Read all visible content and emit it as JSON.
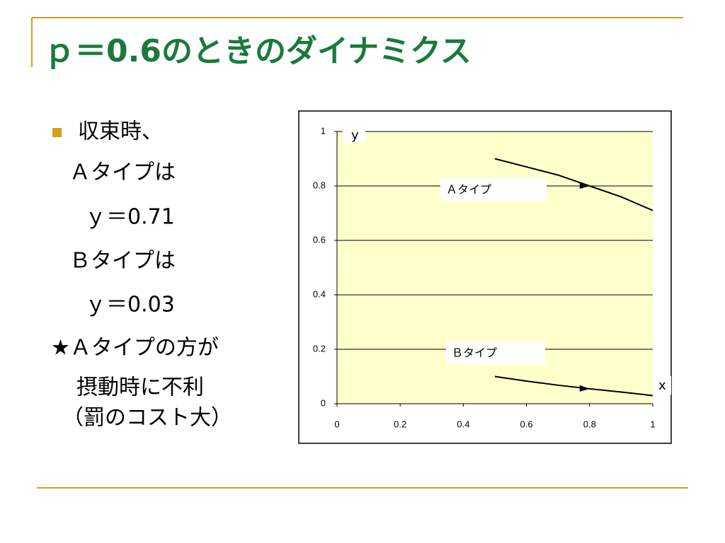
{
  "header": {
    "title": "ｐ＝0.6のときのダイナミクス"
  },
  "body": {
    "lines": [
      "収束時、",
      "Ａタイプは",
      "ｙ＝0.71",
      "Ｂタイプは",
      "ｙ＝0.03",
      "★Ａタイプの方が",
      "摂動時に不利",
      "（罰のコスト大）"
    ]
  },
  "chart_data": {
    "type": "line",
    "x": [
      0.5,
      0.6,
      0.7,
      0.8,
      0.9,
      1.0
    ],
    "series": [
      {
        "name": "Ａタイプ",
        "color": "#000000",
        "values": [
          0.9,
          0.87,
          0.84,
          0.8,
          0.76,
          0.71
        ]
      },
      {
        "name": "Ｂタイプ",
        "color": "#000000",
        "values": [
          0.1,
          0.083,
          0.068,
          0.055,
          0.043,
          0.03
        ]
      }
    ],
    "x_label": "x",
    "y_label": "y",
    "xlim": [
      0,
      1
    ],
    "ylim": [
      0,
      1
    ],
    "xticks": [
      0,
      0.2,
      0.4,
      0.6,
      0.8,
      1
    ],
    "yticks": [
      0,
      0.2,
      0.4,
      0.6,
      0.8,
      1
    ],
    "grid": true
  }
}
